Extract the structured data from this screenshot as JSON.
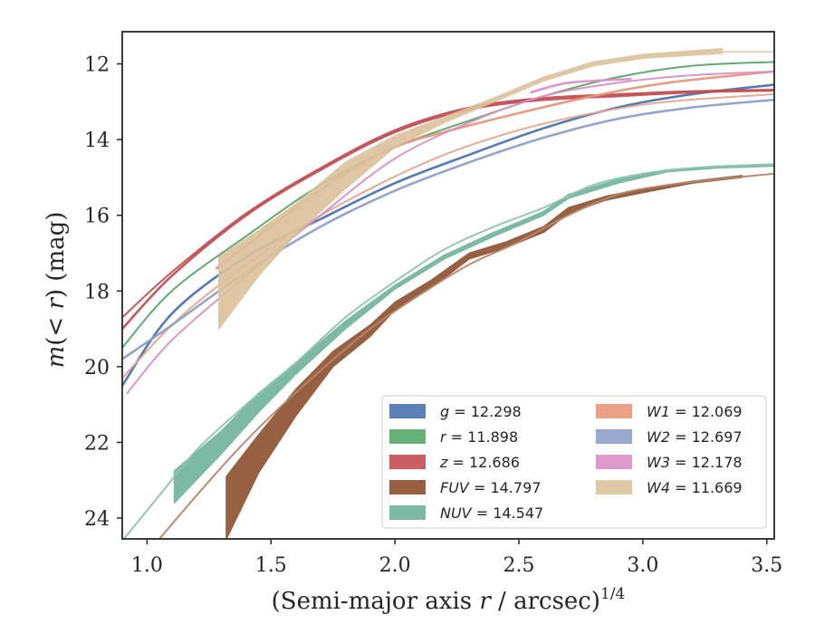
{
  "chart_data": {
    "type": "line",
    "title": "",
    "xlabel_parts": {
      "text": "(Semi-major axis ",
      "var": "r",
      "rest": " / arcsec)",
      "sup": "1/4"
    },
    "ylabel_parts": {
      "pre": "m",
      "open": "(",
      "lt": "< ",
      "var": "r",
      "close": ")",
      "unit": " (mag)"
    },
    "xlim": [
      0.9,
      3.53
    ],
    "ylim": [
      24.55,
      11.15
    ],
    "y_inverted": true,
    "grid": false,
    "legend_position": "lower-right",
    "x_ticks": [
      1.0,
      1.5,
      2.0,
      2.5,
      3.0,
      3.5
    ],
    "x_tick_labels": [
      "1.0",
      "1.5",
      "2.0",
      "2.5",
      "3.0",
      "3.5"
    ],
    "y_ticks": [
      12,
      14,
      16,
      18,
      20,
      22,
      24
    ],
    "y_tick_labels": [
      "12",
      "14",
      "16",
      "18",
      "20",
      "22",
      "24"
    ],
    "legend": [
      {
        "name": "g",
        "value": "= 12.298",
        "color": "#4c72b0"
      },
      {
        "name": "r",
        "value": "= 11.898",
        "color": "#55a868"
      },
      {
        "name": "z",
        "value": "= 12.686",
        "color": "#c44e52"
      },
      {
        "name": "FUV",
        "value": "= 14.797",
        "color": "#8c4f2e"
      },
      {
        "name": "NUV",
        "value": "= 14.547",
        "color": "#6fb39c"
      },
      {
        "name": "W1",
        "value": "= 12.069",
        "color": "#e9967a"
      },
      {
        "name": "W2",
        "value": "= 12.697",
        "color": "#8f9fc8"
      },
      {
        "name": "W3",
        "value": "= 12.178",
        "color": "#d990c6"
      },
      {
        "name": "W4",
        "value": "= 11.669",
        "color": "#dcc29c"
      }
    ],
    "series": [
      {
        "name": "g",
        "color": "#4c72b0",
        "band_width": 0.12,
        "points": [
          [
            0.9,
            20.5
          ],
          [
            1.1,
            18.6
          ],
          [
            1.4,
            17.1
          ],
          [
            1.7,
            16.1
          ],
          [
            2.0,
            15.15
          ],
          [
            2.3,
            14.4
          ],
          [
            2.6,
            13.7
          ],
          [
            2.9,
            13.15
          ],
          [
            3.2,
            12.8
          ],
          [
            3.53,
            12.55
          ]
        ]
      },
      {
        "name": "r",
        "color": "#55a868",
        "band_width": 0.08,
        "points": [
          [
            0.9,
            19.5
          ],
          [
            1.1,
            18.0
          ],
          [
            1.4,
            16.55
          ],
          [
            1.7,
            15.2
          ],
          [
            2.0,
            14.2
          ],
          [
            2.3,
            13.5
          ],
          [
            2.6,
            12.85
          ],
          [
            2.9,
            12.35
          ],
          [
            3.2,
            12.05
          ],
          [
            3.53,
            11.95
          ]
        ]
      },
      {
        "name": "z",
        "color": "#c44e52",
        "band_width": 0.1,
        "points": [
          [
            0.9,
            19.0
          ],
          [
            1.1,
            17.6
          ],
          [
            1.4,
            16.0
          ],
          [
            1.7,
            14.8
          ],
          [
            2.0,
            13.8
          ],
          [
            2.3,
            13.2
          ],
          [
            2.6,
            12.95
          ],
          [
            2.9,
            12.85
          ],
          [
            3.2,
            12.75
          ],
          [
            3.53,
            12.7
          ]
        ]
      },
      {
        "name": "z-upper",
        "color": "#c44e52",
        "band_width": 0.06,
        "points": [
          [
            0.9,
            18.7
          ],
          [
            1.1,
            17.5
          ],
          [
            1.4,
            15.95
          ],
          [
            1.7,
            14.75
          ],
          [
            2.0,
            13.75
          ],
          [
            2.3,
            13.15
          ],
          [
            2.6,
            12.9
          ],
          [
            2.9,
            12.8
          ],
          [
            3.2,
            12.72
          ],
          [
            3.53,
            12.68
          ]
        ]
      },
      {
        "name": "FUV",
        "color": "#8c4f2e",
        "band_width": 0.0,
        "band_lo": [
          [
            1.32,
            22.9
          ],
          [
            1.45,
            21.8
          ],
          [
            1.6,
            20.6
          ],
          [
            1.75,
            19.6
          ],
          [
            1.9,
            18.9
          ],
          [
            2.0,
            18.3
          ],
          [
            2.15,
            17.7
          ],
          [
            2.3,
            17.0
          ],
          [
            2.45,
            16.7
          ],
          [
            2.6,
            16.3
          ],
          [
            2.7,
            15.8
          ],
          [
            2.85,
            15.5
          ],
          [
            3.0,
            15.3
          ],
          [
            3.2,
            15.1
          ],
          [
            3.4,
            14.95
          ]
        ],
        "band_hi": [
          [
            1.32,
            24.55
          ],
          [
            1.45,
            22.8
          ],
          [
            1.6,
            21.3
          ],
          [
            1.75,
            20.0
          ],
          [
            1.9,
            19.2
          ],
          [
            2.0,
            18.5
          ],
          [
            2.15,
            17.9
          ],
          [
            2.3,
            17.15
          ],
          [
            2.45,
            16.85
          ],
          [
            2.6,
            16.45
          ],
          [
            2.7,
            15.95
          ],
          [
            2.85,
            15.6
          ],
          [
            3.0,
            15.4
          ],
          [
            3.2,
            15.15
          ],
          [
            3.4,
            15.0
          ]
        ]
      },
      {
        "name": "FUV-thin",
        "color": "#b5876c",
        "band_width": 0.05,
        "points": [
          [
            1.05,
            24.55
          ],
          [
            1.2,
            23.4
          ],
          [
            1.35,
            22.3
          ],
          [
            1.5,
            21.3
          ],
          [
            1.7,
            20.1
          ],
          [
            1.9,
            19.0
          ],
          [
            2.1,
            18.1
          ],
          [
            2.3,
            17.3
          ],
          [
            2.5,
            16.7
          ],
          [
            2.7,
            16.0
          ],
          [
            2.9,
            15.45
          ],
          [
            3.1,
            15.2
          ],
          [
            3.3,
            15.05
          ],
          [
            3.53,
            14.9
          ]
        ]
      },
      {
        "name": "NUV",
        "color": "#6fb39c",
        "band_width": 0.0,
        "band_lo": [
          [
            1.11,
            22.75
          ],
          [
            1.3,
            21.7
          ],
          [
            1.45,
            20.7
          ],
          [
            1.6,
            19.9
          ],
          [
            1.8,
            18.8
          ],
          [
            2.0,
            17.85
          ],
          [
            2.2,
            17.05
          ],
          [
            2.4,
            16.45
          ],
          [
            2.6,
            15.9
          ],
          [
            2.7,
            15.45
          ],
          [
            2.9,
            15.05
          ],
          [
            3.1,
            14.8
          ],
          [
            3.3,
            14.7
          ],
          [
            3.53,
            14.65
          ]
        ],
        "band_hi": [
          [
            1.11,
            23.6
          ],
          [
            1.3,
            22.3
          ],
          [
            1.45,
            21.2
          ],
          [
            1.6,
            20.2
          ],
          [
            1.8,
            19.0
          ],
          [
            2.0,
            17.95
          ],
          [
            2.2,
            17.15
          ],
          [
            2.4,
            16.55
          ],
          [
            2.6,
            16.0
          ],
          [
            2.7,
            15.55
          ],
          [
            2.9,
            15.15
          ],
          [
            3.1,
            14.85
          ],
          [
            3.3,
            14.75
          ],
          [
            3.53,
            14.7
          ]
        ]
      },
      {
        "name": "NUV-thin",
        "color": "#8fc4b0",
        "band_width": 0.05,
        "points": [
          [
            0.9,
            24.6
          ],
          [
            1.05,
            23.4
          ],
          [
            1.2,
            22.2
          ],
          [
            1.4,
            21.0
          ],
          [
            1.6,
            19.9
          ],
          [
            1.8,
            18.7
          ],
          [
            2.0,
            17.75
          ],
          [
            2.2,
            16.9
          ],
          [
            2.4,
            16.3
          ],
          [
            2.6,
            15.8
          ],
          [
            2.8,
            15.2
          ],
          [
            3.0,
            14.9
          ],
          [
            3.2,
            14.75
          ],
          [
            3.53,
            14.65
          ]
        ]
      },
      {
        "name": "W1",
        "color": "#e9967a",
        "band_width": 0.1,
        "points": [
          [
            1.28,
            17.4
          ],
          [
            1.4,
            16.8
          ],
          [
            1.6,
            15.8
          ],
          [
            1.8,
            14.9
          ],
          [
            2.0,
            14.2
          ],
          [
            2.2,
            13.8
          ],
          [
            2.5,
            13.3
          ],
          [
            2.8,
            12.85
          ],
          [
            3.1,
            12.5
          ],
          [
            3.53,
            12.2
          ]
        ]
      },
      {
        "name": "W1-lo",
        "color": "#e9a58c",
        "band_width": 0.05,
        "points": [
          [
            0.9,
            20.3
          ],
          [
            1.1,
            18.9
          ],
          [
            1.3,
            17.8
          ],
          [
            1.6,
            16.4
          ],
          [
            1.9,
            15.3
          ],
          [
            2.2,
            14.4
          ],
          [
            2.5,
            13.75
          ],
          [
            2.8,
            13.3
          ],
          [
            3.1,
            13.0
          ],
          [
            3.53,
            12.8
          ]
        ]
      },
      {
        "name": "W2",
        "color": "#8f9fc8",
        "band_width": 0.1,
        "points": [
          [
            0.9,
            19.8
          ],
          [
            1.1,
            18.9
          ],
          [
            1.4,
            17.5
          ],
          [
            1.7,
            16.3
          ],
          [
            2.0,
            15.35
          ],
          [
            2.3,
            14.6
          ],
          [
            2.6,
            13.95
          ],
          [
            2.9,
            13.45
          ],
          [
            3.2,
            13.15
          ],
          [
            3.53,
            12.95
          ]
        ]
      },
      {
        "name": "W3",
        "color": "#d990c6",
        "band_width": 0.06,
        "points": [
          [
            0.92,
            20.7
          ],
          [
            1.1,
            19.3
          ],
          [
            1.4,
            17.6
          ],
          [
            1.7,
            16.0
          ],
          [
            2.0,
            14.5
          ],
          [
            2.3,
            13.55
          ],
          [
            2.6,
            12.85
          ],
          [
            2.9,
            12.5
          ],
          [
            3.2,
            12.3
          ],
          [
            3.53,
            12.2
          ]
        ]
      },
      {
        "name": "W3-short",
        "color": "#d990c6",
        "band_width": 0.1,
        "points": [
          [
            2.55,
            12.75
          ],
          [
            2.7,
            12.5
          ],
          [
            2.95,
            12.4
          ]
        ]
      },
      {
        "name": "W4",
        "color": "#dcc29c",
        "band_width": 0.0,
        "band_lo": [
          [
            1.29,
            17.1
          ],
          [
            1.45,
            16.4
          ],
          [
            1.6,
            15.7
          ],
          [
            1.8,
            14.6
          ],
          [
            2.0,
            13.9
          ],
          [
            2.2,
            13.4
          ],
          [
            2.4,
            12.9
          ],
          [
            2.6,
            12.35
          ],
          [
            2.8,
            11.95
          ],
          [
            3.0,
            11.75
          ],
          [
            3.32,
            11.6
          ]
        ],
        "band_hi": [
          [
            1.29,
            19.0
          ],
          [
            1.45,
            17.6
          ],
          [
            1.6,
            16.5
          ],
          [
            1.8,
            15.3
          ],
          [
            2.0,
            14.2
          ],
          [
            2.2,
            13.55
          ],
          [
            2.4,
            13.0
          ],
          [
            2.6,
            12.45
          ],
          [
            2.8,
            12.05
          ],
          [
            3.0,
            11.85
          ],
          [
            3.32,
            11.72
          ]
        ]
      },
      {
        "name": "W4-thin",
        "color": "#e4d3b4",
        "band_width": 0.05,
        "points": [
          [
            3.3,
            11.68
          ],
          [
            3.53,
            11.68
          ]
        ]
      }
    ]
  }
}
